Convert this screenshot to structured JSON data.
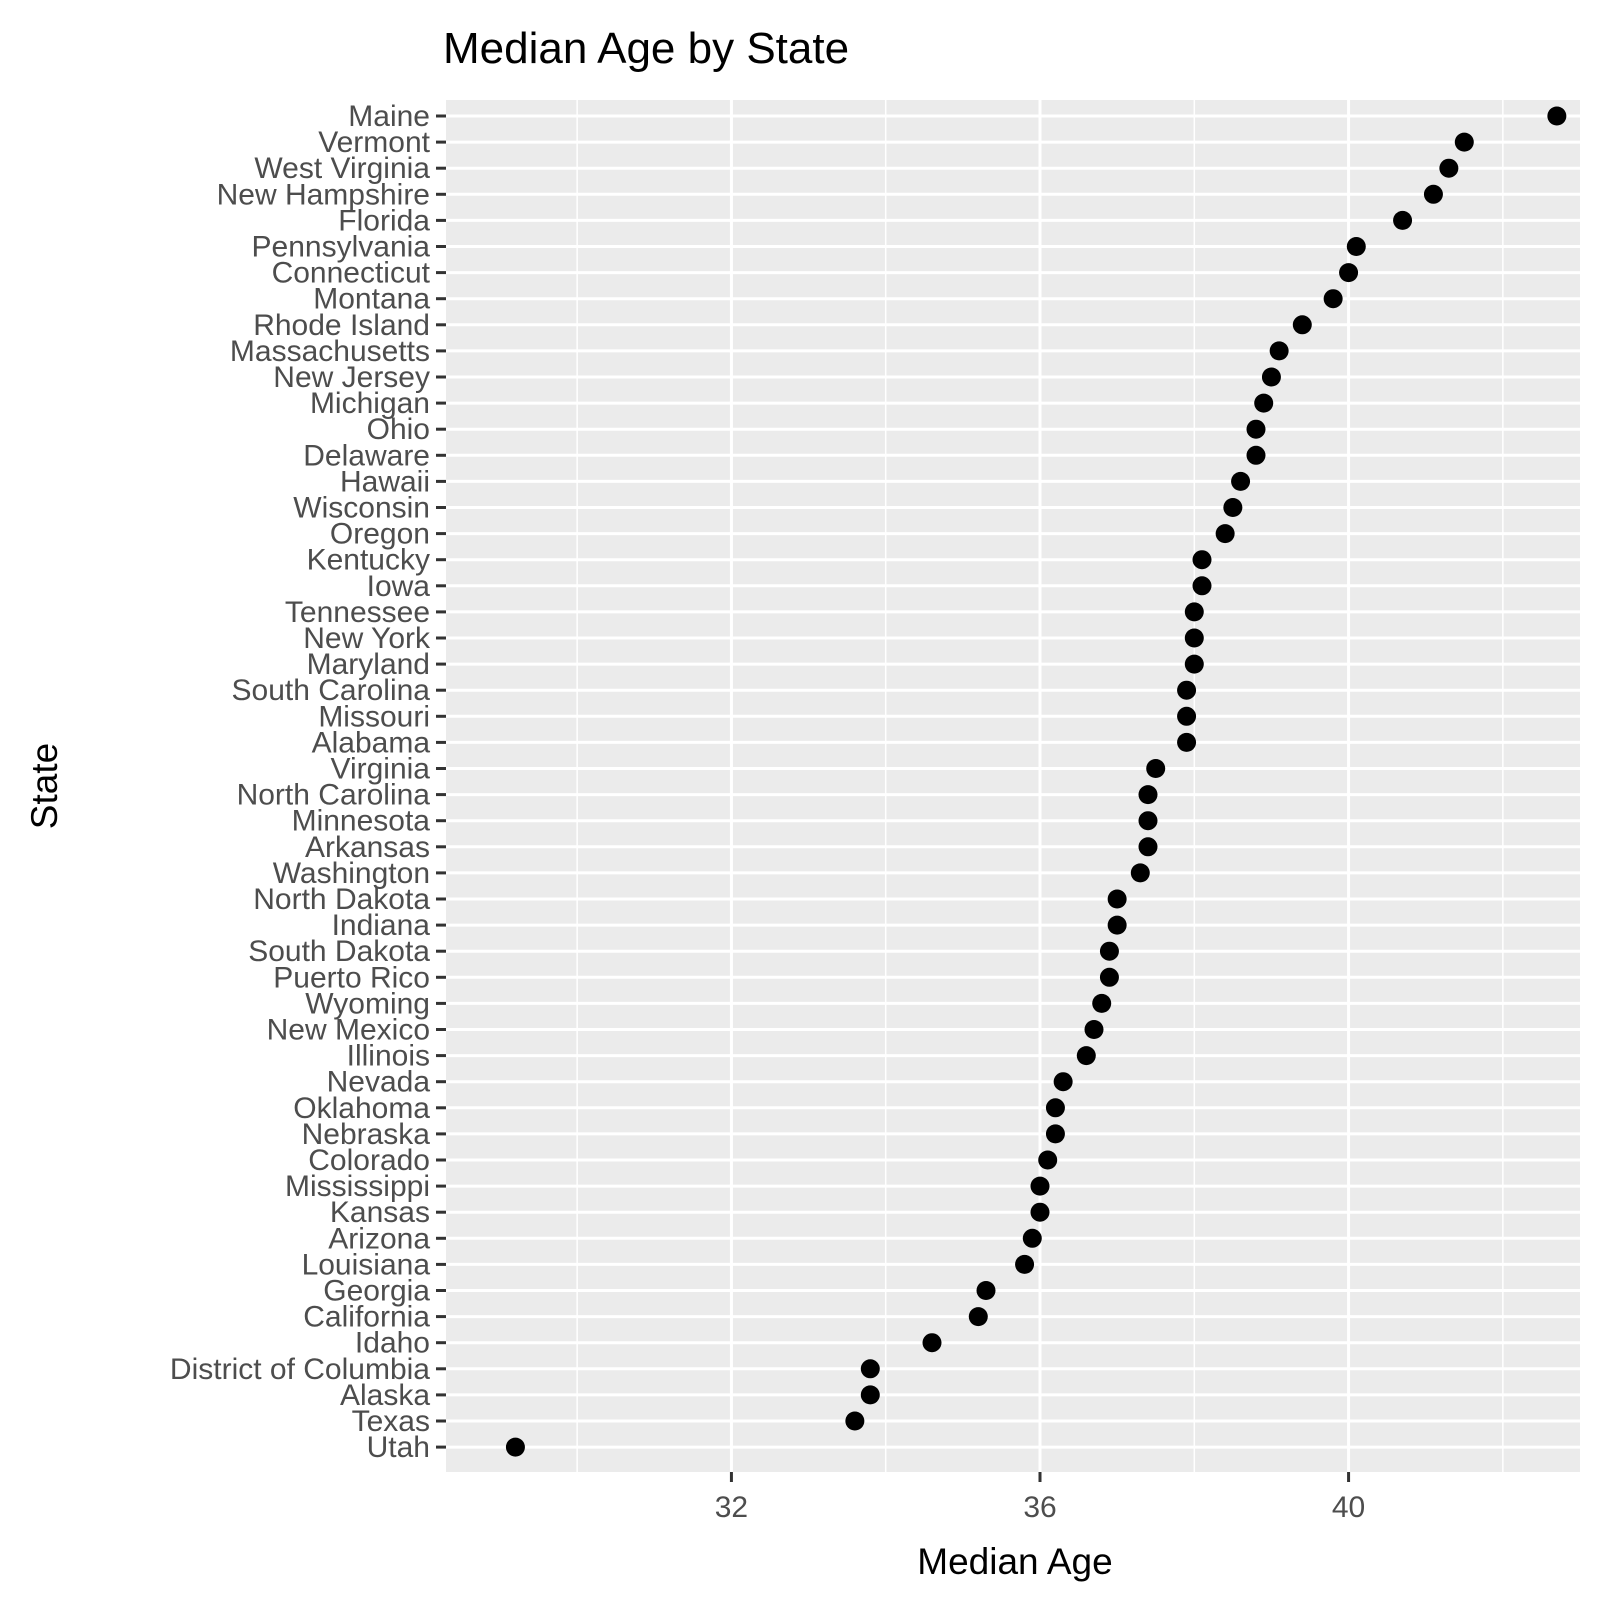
{
  "chart_data": {
    "type": "scatter",
    "title": "Median Age by State",
    "xlabel": "Median Age",
    "ylabel": "State",
    "xlim": [
      28.3,
      43.0
    ],
    "x_major_ticks": [
      32,
      36,
      40
    ],
    "x_tick_labels": [
      "32",
      "36",
      "40"
    ],
    "x_minor_ticks": [
      30,
      34,
      38,
      42
    ],
    "grid": true,
    "legend": "none",
    "point_color": "#000000",
    "panel_color": "#ebebeb",
    "categories": [
      "Maine",
      "Vermont",
      "West Virginia",
      "New Hampshire",
      "Florida",
      "Pennsylvania",
      "Connecticut",
      "Montana",
      "Rhode Island",
      "Massachusetts",
      "New Jersey",
      "Michigan",
      "Ohio",
      "Delaware",
      "Hawaii",
      "Wisconsin",
      "Oregon",
      "Kentucky",
      "Iowa",
      "Tennessee",
      "New York",
      "Maryland",
      "South Carolina",
      "Missouri",
      "Alabama",
      "Virginia",
      "North Carolina",
      "Minnesota",
      "Arkansas",
      "Washington",
      "North Dakota",
      "Indiana",
      "South Dakota",
      "Puerto Rico",
      "Wyoming",
      "New Mexico",
      "Illinois",
      "Nevada",
      "Oklahoma",
      "Nebraska",
      "Colorado",
      "Mississippi",
      "Kansas",
      "Arizona",
      "Louisiana",
      "Georgia",
      "California",
      "Idaho",
      "District of Columbia",
      "Alaska",
      "Texas",
      "Utah"
    ],
    "values": [
      42.7,
      41.5,
      41.3,
      41.1,
      40.7,
      40.1,
      40.0,
      39.8,
      39.4,
      39.1,
      39.0,
      38.9,
      38.8,
      38.8,
      38.6,
      38.5,
      38.4,
      38.1,
      38.1,
      38.0,
      38.0,
      38.0,
      37.9,
      37.9,
      37.9,
      37.5,
      37.4,
      37.4,
      37.4,
      37.3,
      37.0,
      37.0,
      36.9,
      36.9,
      36.8,
      36.7,
      36.6,
      36.3,
      36.2,
      36.2,
      36.1,
      36.0,
      36.0,
      35.9,
      35.8,
      35.3,
      35.2,
      34.6,
      33.8,
      33.8,
      33.6,
      29.2
    ]
  }
}
